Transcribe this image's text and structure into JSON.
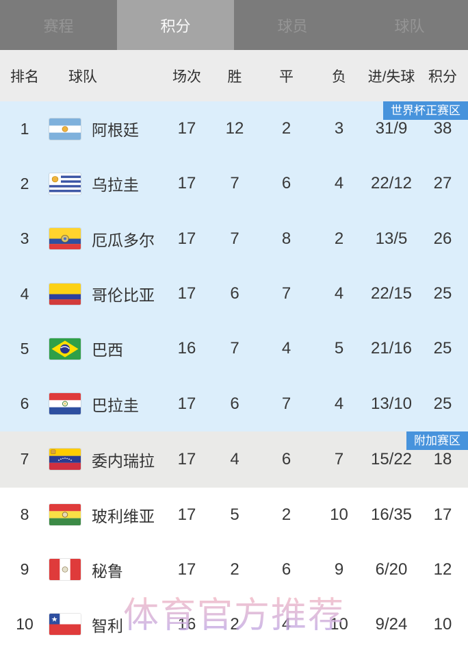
{
  "tabs": {
    "items": [
      {
        "label": "赛程",
        "active": false
      },
      {
        "label": "积分",
        "active": true
      },
      {
        "label": "球员",
        "active": false
      },
      {
        "label": "球队",
        "active": false
      }
    ]
  },
  "table": {
    "columns": [
      "排名",
      "球队",
      "场次",
      "胜",
      "平",
      "负",
      "进/失球",
      "积分"
    ],
    "sections": [
      {
        "badge": "世界杯正赛区",
        "badge_color": "#4793dc",
        "bg": "#dceefb",
        "rows": [
          {
            "rank": "1",
            "flag": "argentina",
            "team": "阿根廷",
            "played": "17",
            "won": "12",
            "drawn": "2",
            "lost": "3",
            "goals": "31/9",
            "points": "38"
          },
          {
            "rank": "2",
            "flag": "uruguay",
            "team": "乌拉圭",
            "played": "17",
            "won": "7",
            "drawn": "6",
            "lost": "4",
            "goals": "22/12",
            "points": "27"
          },
          {
            "rank": "3",
            "flag": "ecuador",
            "team": "厄瓜多尔",
            "played": "17",
            "won": "7",
            "drawn": "8",
            "lost": "2",
            "goals": "13/5",
            "points": "26"
          },
          {
            "rank": "4",
            "flag": "colombia",
            "team": "哥伦比亚",
            "played": "17",
            "won": "6",
            "drawn": "7",
            "lost": "4",
            "goals": "22/15",
            "points": "25"
          },
          {
            "rank": "5",
            "flag": "brazil",
            "team": "巴西",
            "played": "16",
            "won": "7",
            "drawn": "4",
            "lost": "5",
            "goals": "21/16",
            "points": "25"
          },
          {
            "rank": "6",
            "flag": "paraguay",
            "team": "巴拉圭",
            "played": "17",
            "won": "6",
            "drawn": "7",
            "lost": "4",
            "goals": "13/10",
            "points": "25"
          }
        ]
      },
      {
        "badge": "附加赛区",
        "badge_color": "#4793dc",
        "bg": "#eaeae8",
        "rows": [
          {
            "rank": "7",
            "flag": "venezuela",
            "team": "委内瑞拉",
            "played": "17",
            "won": "4",
            "drawn": "6",
            "lost": "7",
            "goals": "15/22",
            "points": "18"
          }
        ]
      },
      {
        "badge": null,
        "badge_color": null,
        "bg": "#ffffff",
        "rows": [
          {
            "rank": "8",
            "flag": "bolivia",
            "team": "玻利维亚",
            "played": "17",
            "won": "5",
            "drawn": "2",
            "lost": "10",
            "goals": "16/35",
            "points": "17"
          },
          {
            "rank": "9",
            "flag": "peru",
            "team": "秘鲁",
            "played": "17",
            "won": "2",
            "drawn": "6",
            "lost": "9",
            "goals": "6/20",
            "points": "12"
          },
          {
            "rank": "10",
            "flag": "chile",
            "team": "智利",
            "played": "16",
            "won": "2",
            "drawn": "4",
            "lost": "10",
            "goals": "9/24",
            "points": "10"
          }
        ]
      }
    ]
  },
  "watermark": {
    "text": "体育官方推荐"
  }
}
